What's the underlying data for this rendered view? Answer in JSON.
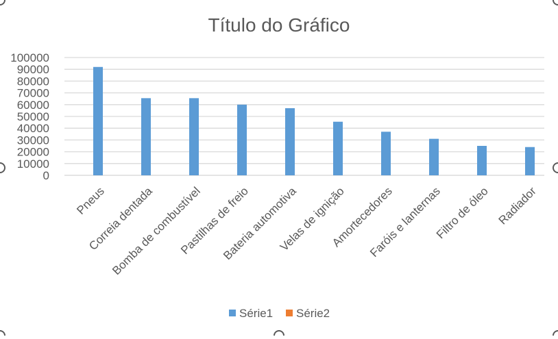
{
  "chart_data": {
    "type": "bar",
    "title": "Título do Gráfico",
    "xlabel": "",
    "ylabel": "",
    "categories": [
      "Pneus",
      "Correia dentada",
      "Bomba de combustível",
      "Pastilhas de freio",
      "Bateria automotiva",
      "Velas de ignição",
      "Amortecedores",
      "Faróis e lanternas",
      "Filtro de óleo",
      "Radiador"
    ],
    "series": [
      {
        "name": "Série1",
        "values": [
          92000,
          65500,
          65500,
          60000,
          57000,
          45500,
          37000,
          31000,
          25000,
          24000
        ],
        "color": "#5b9bd5"
      },
      {
        "name": "Série2",
        "values": [
          0,
          0,
          0,
          0,
          0,
          0,
          0,
          0,
          0,
          0
        ],
        "color": "#ed7d31"
      }
    ],
    "ylim": [
      0,
      100000
    ],
    "yticks": [
      0,
      10000,
      20000,
      30000,
      40000,
      50000,
      60000,
      70000,
      80000,
      90000,
      100000
    ],
    "ytick_labels": [
      "0",
      "10000",
      "20000",
      "30000",
      "40000",
      "50000",
      "60000",
      "70000",
      "80000",
      "90000",
      "100000"
    ],
    "grid": true,
    "legend_position": "bottom"
  }
}
